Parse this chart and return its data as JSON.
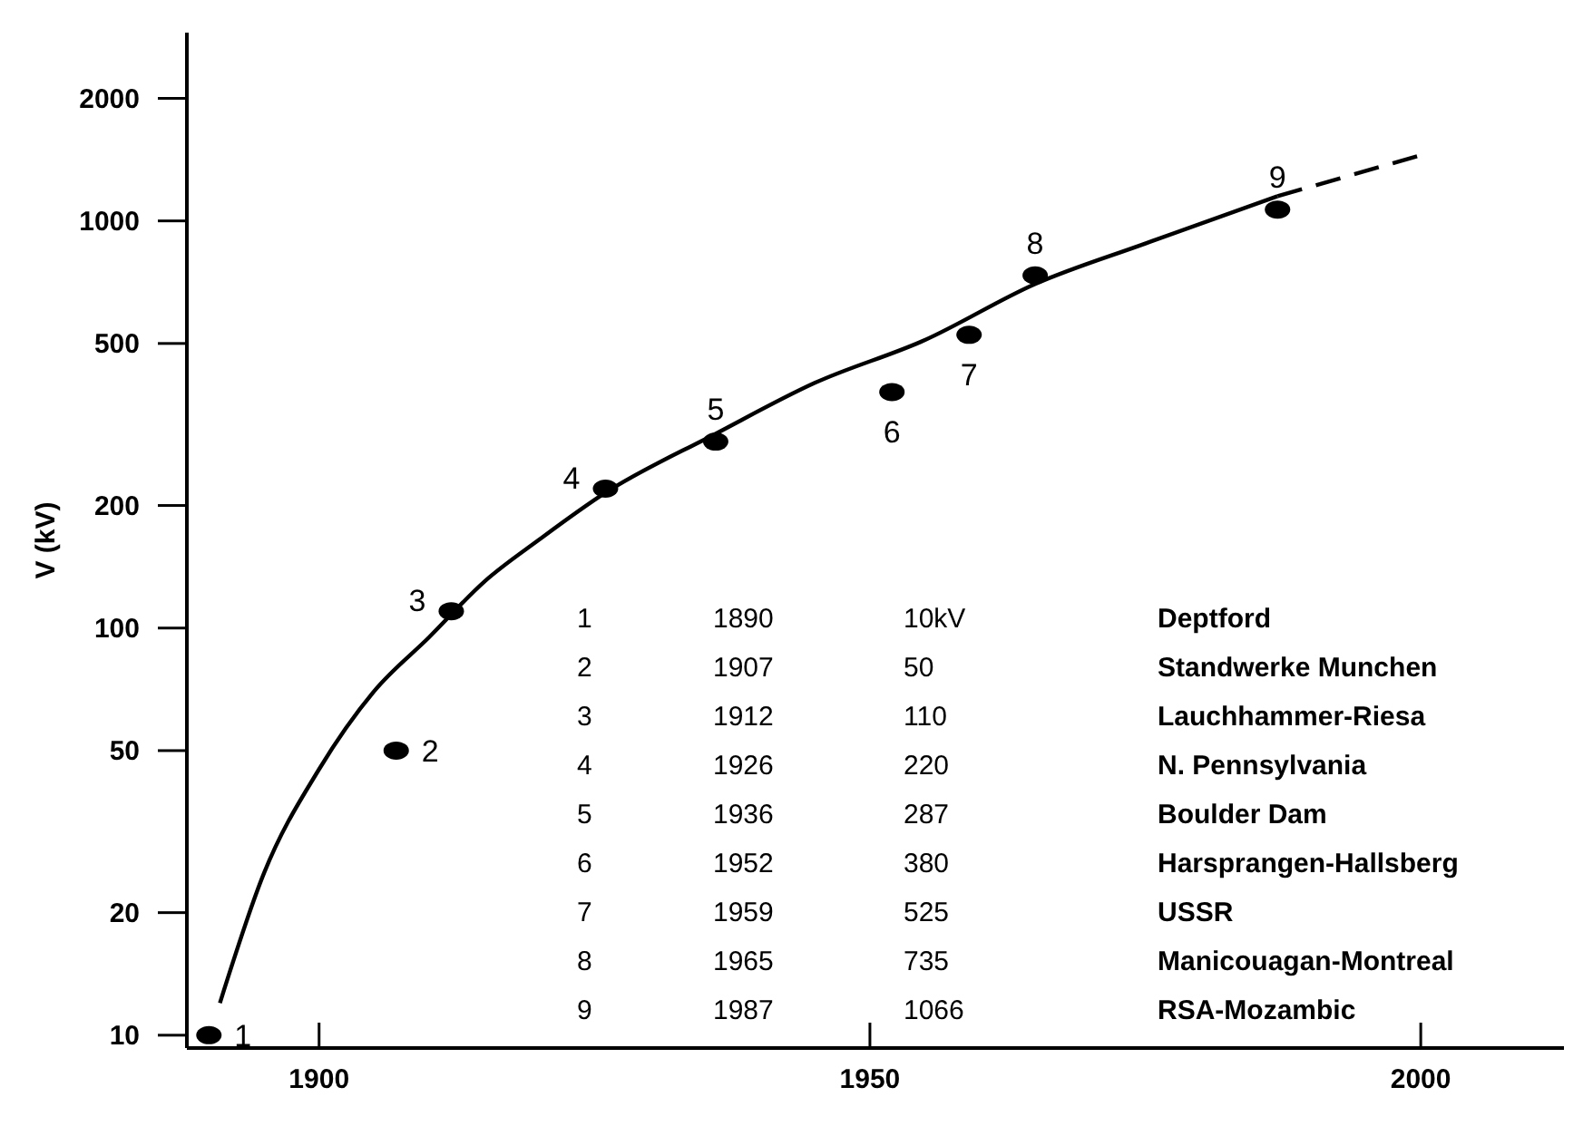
{
  "chart_data": {
    "type": "scatter",
    "ylabel": "V (kV)",
    "log": "y",
    "xlim": [
      1888,
      2013
    ],
    "xticks": [
      1900,
      1950,
      2000
    ],
    "ylim": [
      9.3,
      2900
    ],
    "yticks": [
      10,
      20,
      50,
      100,
      200,
      500,
      1000,
      2000
    ],
    "grid": false,
    "marker": "circle",
    "series": [
      {
        "color": "#000000",
        "x": [
          1890,
          1907,
          1912,
          1926,
          1936,
          1952,
          1959,
          1965,
          1987
        ],
        "values": [
          10,
          50,
          110,
          220,
          287,
          380,
          525,
          735,
          1066
        ]
      },
      {
        "type": "line",
        "color": "#000000",
        "line_style": "solid",
        "marker": "none",
        "x": [
          1891,
          1895,
          1900,
          1905,
          1910,
          1915,
          1920,
          1926,
          1936,
          1945,
          1955,
          1965,
          1975,
          1987
        ],
        "values": [
          12,
          25,
          45,
          70,
          95,
          130,
          165,
          215,
          300,
          400,
          510,
          700,
          880,
          1150
        ]
      },
      {
        "type": "line",
        "color": "#000000",
        "line_style": "dashed",
        "marker": "none",
        "x": [
          1987,
          2000
        ],
        "values": [
          1150,
          1450
        ]
      }
    ],
    "annotations": [
      {
        "text": "1",
        "x": 1890,
        "y": 10
      },
      {
        "text": "2",
        "x": 1907,
        "y": 50
      },
      {
        "text": "3",
        "x": 1912,
        "y": 110
      },
      {
        "text": "4",
        "x": 1926,
        "y": 220
      },
      {
        "text": "5",
        "x": 1936,
        "y": 287
      },
      {
        "text": "6",
        "x": 1952,
        "y": 380
      },
      {
        "text": "7",
        "x": 1959,
        "y": 525
      },
      {
        "text": "8",
        "x": 1965,
        "y": 735
      },
      {
        "text": "9",
        "x": 1987,
        "y": 1066
      },
      "1",
      "1890",
      "10kV",
      "Deptford",
      "2",
      "1907",
      "50",
      "Standwerke Munchen",
      "3",
      "1912",
      "110",
      "Lauchhammer-Riesa",
      "4",
      "1926",
      "220",
      "N. Pennsylvania",
      "5",
      "1936",
      "287",
      "Boulder Dam",
      "6",
      "1952",
      "380",
      "Harsprangen-Hallsberg",
      "7",
      "1959",
      "525",
      "USSR",
      "8",
      "1965",
      "735",
      "Manicouagan-Montreal",
      "9",
      "1987",
      "1066",
      "RSA-Mozambic"
    ]
  }
}
